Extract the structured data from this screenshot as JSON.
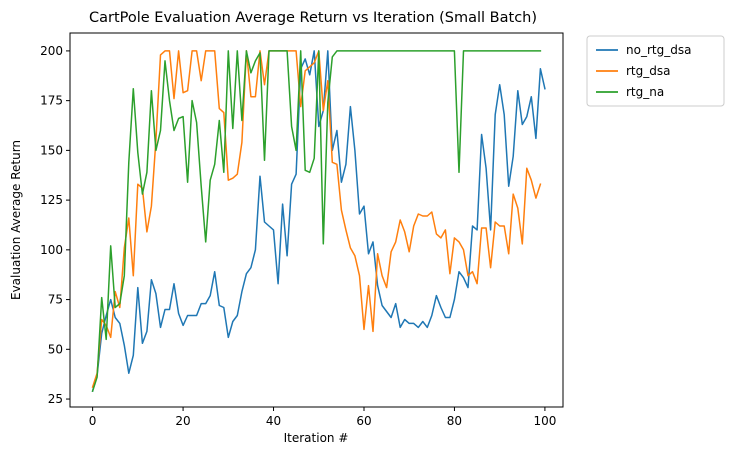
{
  "chart_data": {
    "type": "line",
    "title": "CartPole Evaluation Average Return vs Iteration (Small Batch)",
    "xlabel": "Iteration #",
    "ylabel": "Evaluation Average Return",
    "xlim": [
      -5,
      104
    ],
    "ylim": [
      21,
      209
    ],
    "xticks": [
      0,
      20,
      40,
      60,
      80,
      100
    ],
    "yticks": [
      25,
      50,
      75,
      100,
      125,
      150,
      175,
      200
    ],
    "grid": false,
    "legend_position": "outside-right-top",
    "series": [
      {
        "name": "no_rtg_dsa",
        "color": "#1f77b4",
        "y": [
          29,
          37,
          58,
          67,
          75,
          66,
          63,
          52,
          38,
          47,
          81,
          53,
          59,
          85,
          78,
          61,
          70,
          70,
          83,
          68,
          62,
          67,
          67,
          67,
          73,
          73,
          77,
          89,
          72,
          71,
          56,
          64,
          67,
          79,
          88,
          91,
          100,
          137,
          114,
          112,
          110,
          83,
          123,
          97,
          133,
          138,
          191,
          196,
          188,
          200,
          162,
          170,
          200,
          150,
          160,
          134,
          143,
          172,
          150,
          118,
          122,
          98,
          104,
          82,
          72,
          69,
          66,
          73,
          61,
          65,
          63,
          63,
          61,
          64,
          61,
          67,
          77,
          71,
          66,
          66,
          75,
          89,
          86,
          81,
          112,
          110,
          158,
          141,
          110,
          168,
          183,
          168,
          132,
          147,
          180,
          163,
          167,
          177,
          156,
          191,
          181
        ]
      },
      {
        "name": "rtg_dsa",
        "color": "#ff7f0e",
        "y": [
          31,
          38,
          65,
          62,
          56,
          79,
          71,
          101,
          116,
          87,
          133,
          131,
          109,
          122,
          155,
          198,
          200,
          200,
          176,
          200,
          179,
          180,
          200,
          200,
          185,
          200,
          200,
          200,
          171,
          169,
          135,
          136,
          138,
          154,
          200,
          177,
          177,
          200,
          183,
          200,
          200,
          200,
          200,
          200,
          200,
          200,
          172,
          190,
          192,
          194,
          200,
          170,
          185,
          144,
          143,
          120,
          110,
          101,
          97,
          87,
          60,
          82,
          59,
          98,
          87,
          81,
          99,
          104,
          115,
          109,
          99,
          112,
          118,
          117,
          117,
          119,
          108,
          106,
          110,
          88,
          106,
          104,
          100,
          87,
          89,
          83,
          111,
          111,
          91,
          114,
          112,
          112,
          98,
          128,
          121,
          103,
          141,
          135,
          126,
          133
        ]
      },
      {
        "name": "rtg_na",
        "color": "#2ca02c",
        "y": [
          29,
          36,
          76,
          55,
          102,
          71,
          73,
          87,
          144,
          181,
          149,
          128,
          139,
          180,
          150,
          160,
          195,
          175,
          160,
          166,
          167,
          134,
          175,
          164,
          132,
          104,
          135,
          143,
          165,
          139,
          200,
          161,
          200,
          165,
          200,
          189,
          195,
          199,
          145,
          200,
          200,
          200,
          200,
          200,
          162,
          150,
          200,
          140,
          139,
          146,
          200,
          103,
          174,
          197,
          200,
          200,
          200,
          200,
          200,
          200,
          200,
          200,
          200,
          200,
          200,
          200,
          200,
          200,
          200,
          200,
          200,
          200,
          200,
          200,
          200,
          200,
          200,
          200,
          200,
          200,
          200,
          139,
          200,
          200,
          200,
          200,
          200,
          200,
          200,
          200,
          200,
          200,
          200,
          200,
          200,
          200,
          200,
          200,
          200,
          200
        ]
      }
    ]
  }
}
